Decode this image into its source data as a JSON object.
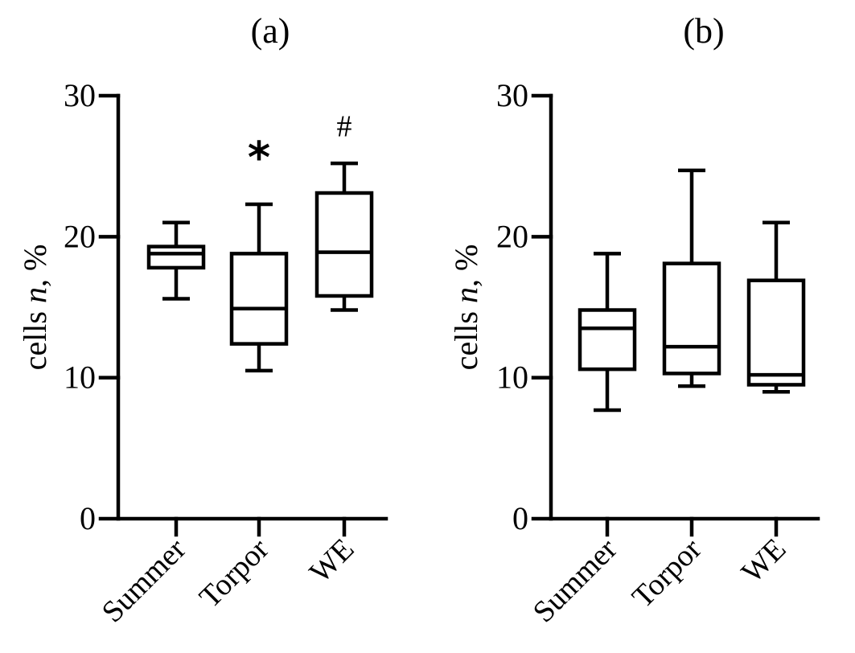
{
  "chart_data": [
    {
      "type": "boxplot",
      "panel_label": "(a)",
      "ylabel_prefix": "cells ",
      "ylabel_italic": "n",
      "ylabel_suffix": ",  %",
      "ylim": [
        0,
        30
      ],
      "yticks": [
        0,
        10,
        20,
        30
      ],
      "categories": [
        "Summer",
        "Torpor",
        "WE"
      ],
      "boxes": [
        {
          "min": 15.6,
          "q1": 17.8,
          "median": 18.8,
          "q3": 19.3,
          "max": 21.0
        },
        {
          "min": 10.5,
          "q1": 12.4,
          "median": 14.9,
          "q3": 18.8,
          "max": 22.3
        },
        {
          "min": 14.8,
          "q1": 15.8,
          "median": 18.9,
          "q3": 23.1,
          "max": 25.2
        }
      ],
      "annotations": [
        {
          "category": "Torpor",
          "text": "*",
          "value": 26.5
        },
        {
          "category": "WE",
          "text": "#",
          "value": 27.8
        }
      ]
    },
    {
      "type": "boxplot",
      "panel_label": "(b)",
      "ylabel_prefix": "cells ",
      "ylabel_italic": "n",
      "ylabel_suffix": ",  %",
      "ylim": [
        0,
        30
      ],
      "yticks": [
        0,
        10,
        20,
        30
      ],
      "categories": [
        "Summer",
        "Torpor",
        "WE"
      ],
      "boxes": [
        {
          "min": 7.7,
          "q1": 10.6,
          "median": 13.5,
          "q3": 14.8,
          "max": 18.8
        },
        {
          "min": 9.4,
          "q1": 10.3,
          "median": 12.2,
          "q3": 18.1,
          "max": 24.7
        },
        {
          "min": 9.0,
          "q1": 9.5,
          "median": 10.2,
          "q3": 16.9,
          "max": 21.0
        }
      ],
      "annotations": []
    }
  ]
}
